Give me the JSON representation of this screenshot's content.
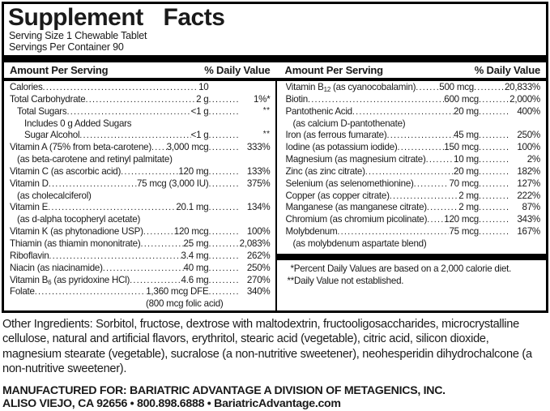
{
  "label": {
    "title": "Supplement Facts",
    "serving_size": "Serving Size 1 Chewable Tablet",
    "servings_per_container": "Servings Per Container 90",
    "column_header": {
      "amount": "Amount Per Serving",
      "daily_value": "% Daily Value"
    },
    "left_rows": [
      {
        "name": "Calories",
        "amount": "10",
        "pct": ""
      },
      {
        "name": "Total Carbohydrate",
        "amount": "2 g",
        "pct": "1%*"
      },
      {
        "name": "Total Sugars",
        "amount": "<1 g",
        "pct": "**",
        "indent": 1
      },
      {
        "name": "Includes 0 g Added Sugars",
        "indent": 2
      },
      {
        "name": "Sugar Alcohol",
        "amount": "<1 g",
        "pct": "**",
        "indent": 2
      },
      {
        "name": "Vitamin A (75% from beta-carotene)",
        "amount": "3,000 mcg",
        "pct": "333%"
      },
      {
        "name": "(as beta-carotene and retinyl palmitate)",
        "indent": 1
      },
      {
        "name": "Vitamin C (as ascorbic acid)",
        "amount": "120 mg",
        "pct": "133%"
      },
      {
        "name": "Vitamin D",
        "amount": "75 mcg (3,000 IU)",
        "pct": "375%"
      },
      {
        "name": "(as cholecalciferol)",
        "indent": 1
      },
      {
        "name": "Vitamin E",
        "amount": "20.1 mg",
        "pct": "134%"
      },
      {
        "name": "(as d-alpha tocopheryl acetate)",
        "indent": 1
      },
      {
        "name": "Vitamin K (as phytonadione USP)",
        "amount": "120 mcg",
        "pct": "100%"
      },
      {
        "name": "Thiamin (as thiamin mononitrate)",
        "amount": "25 mg",
        "pct": "2,083%"
      },
      {
        "name": "Riboflavin",
        "amount": "3.4 mg",
        "pct": "262%"
      },
      {
        "name": "Niacin (as niacinamide)",
        "amount": "40 mg",
        "pct": "250%"
      },
      {
        "name": "Vitamin B6 (as pyridoxine HCl)",
        "amount": "4.6 mg",
        "pct": "270%"
      },
      {
        "name": "Folate",
        "amount": "1,360 mcg DFE",
        "pct": "340%"
      },
      {
        "name": "(800 mcg folic acid)",
        "align": "center"
      }
    ],
    "right_rows": [
      {
        "name": "Vitamin B12 (as cyanocobalamin)",
        "amount": "500 mcg",
        "pct": "20,833%"
      },
      {
        "name": "Biotin",
        "amount": "600 mcg",
        "pct": "2,000%"
      },
      {
        "name": "Pantothenic Acid",
        "amount": "20 mg",
        "pct": "400%"
      },
      {
        "name": "(as calcium D-pantothenate)",
        "indent": 1
      },
      {
        "name": "Iron (as ferrous fumarate)",
        "amount": "45 mg",
        "pct": "250%"
      },
      {
        "name": "Iodine (as potassium iodide)",
        "amount": "150 mcg",
        "pct": "100%"
      },
      {
        "name": "Magnesium (as magnesium citrate)",
        "amount": "10 mg",
        "pct": "2%"
      },
      {
        "name": "Zinc (as zinc citrate)",
        "amount": "20 mg",
        "pct": "182%"
      },
      {
        "name": "Selenium (as selenomethionine)",
        "amount": "70 mcg",
        "pct": "127%"
      },
      {
        "name": "Copper (as copper citrate)",
        "amount": "2 mg",
        "pct": "222%"
      },
      {
        "name": "Manganese (as manganese citrate)",
        "amount": "2 mg",
        "pct": "87%"
      },
      {
        "name": "Chromium (as chromium picolinate)",
        "amount": "120 mcg",
        "pct": "343%"
      },
      {
        "name": "Molybdenum",
        "amount": "75 mcg",
        "pct": "167%"
      },
      {
        "name": "(as molybdenum aspartate blend)",
        "indent": 1
      }
    ],
    "footnotes": [
      "*Percent Daily Values are based on a 2,000 calorie diet.",
      "**Daily Value not established."
    ]
  },
  "footer": {
    "other_ingredients": "Other Ingredients: Sorbitol, fructose, dextrose with maltodextrin, fructooligosaccharides, microcrystalline cellulose, natural and artificial flavors, erythritol, stearic acid (vegetable), citric acid, silicon dioxide, magnesium stearate (vegetable), sucralose (a non-nutritive sweetener), neohesperidin dihydrochalcone (a non-nutritive sweetener).",
    "manufactured_line1": "MANUFACTURED FOR: BARIATRIC ADVANTAGE A DIVISION OF METAGENICS, INC.",
    "manufactured_line2": "ALISO VIEJO, CA 92656 • 800.898.6888 • BariatricAdvantage.com"
  },
  "colors": {
    "text": "#1a1a1a",
    "border": "#000000",
    "background": "#ffffff"
  }
}
